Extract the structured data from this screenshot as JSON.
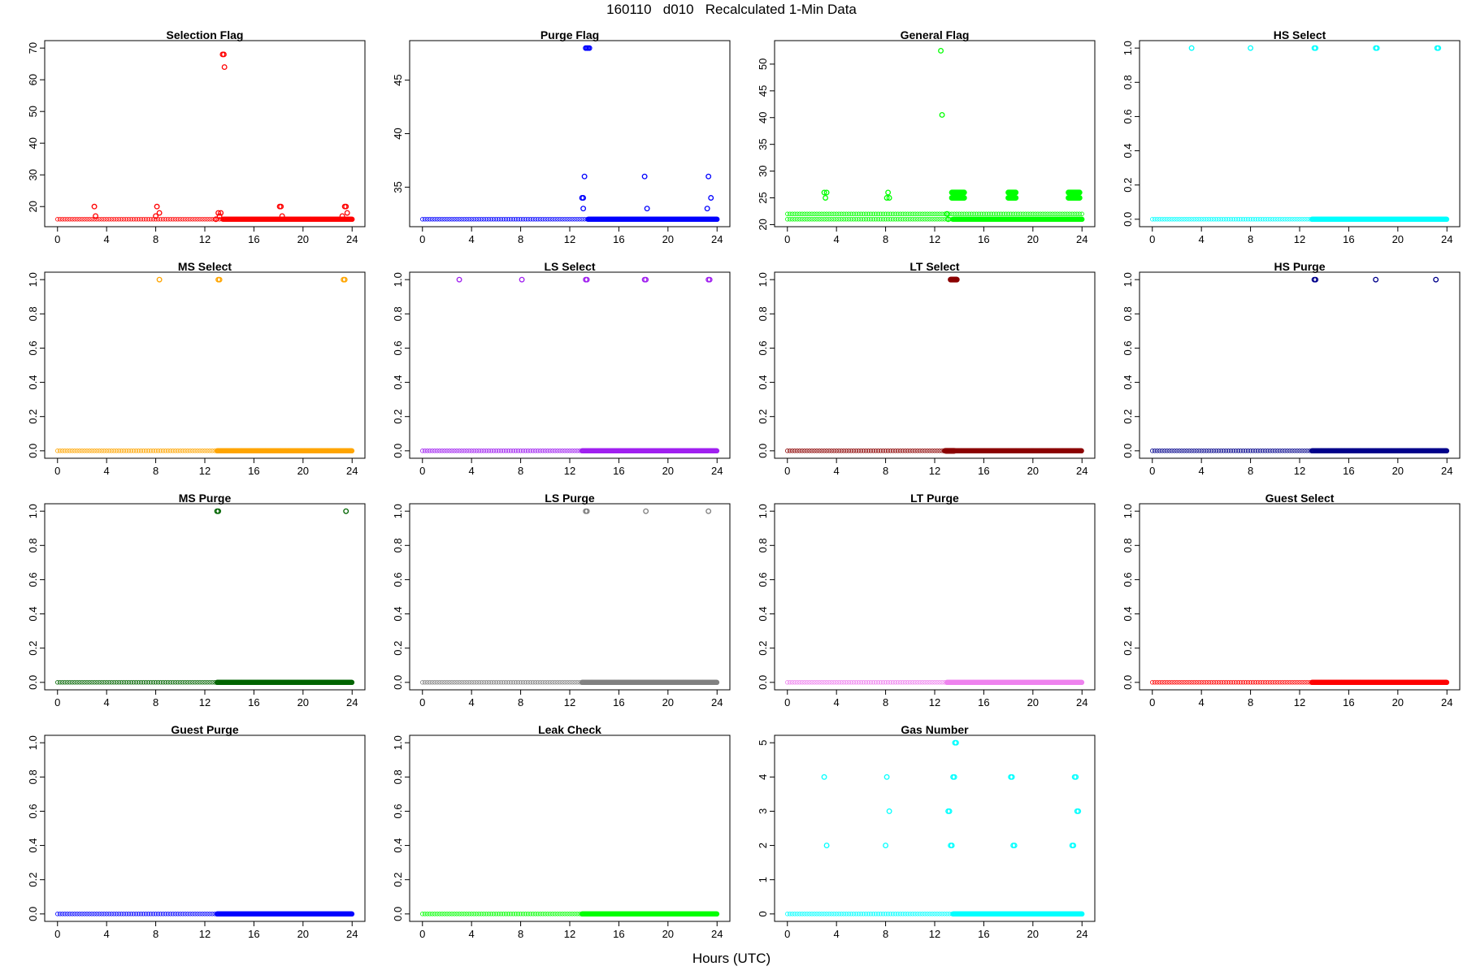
{
  "title": "160110   d010   Recalculated 1-Min Data",
  "xlabel": "Hours (UTC)",
  "chart_data": [
    {
      "type": "scatter",
      "title": "Selection Flag",
      "color": "#ff0000",
      "xlim": [
        0,
        24
      ],
      "ylim": [
        16,
        70
      ],
      "xticks": [
        0,
        4,
        8,
        12,
        16,
        20,
        24
      ],
      "yticks": [
        20,
        30,
        40,
        50,
        60,
        70
      ],
      "baseline": {
        "y": 16,
        "x_range": [
          0,
          24
        ],
        "dense_from": 13.5
      },
      "points": [
        [
          3.0,
          20
        ],
        [
          3.1,
          17
        ],
        [
          8.0,
          17
        ],
        [
          8.1,
          20
        ],
        [
          8.3,
          18
        ],
        [
          12.9,
          16
        ],
        [
          13.1,
          18
        ],
        [
          13.2,
          17
        ],
        [
          13.3,
          18
        ],
        [
          13.45,
          68
        ],
        [
          13.55,
          68
        ],
        [
          13.6,
          64
        ],
        [
          18.1,
          20
        ],
        [
          18.2,
          20
        ],
        [
          18.3,
          17
        ],
        [
          23.2,
          17
        ],
        [
          23.4,
          20
        ],
        [
          23.5,
          20
        ],
        [
          23.6,
          18
        ]
      ]
    },
    {
      "type": "scatter",
      "title": "Purge Flag",
      "color": "#0000ff",
      "xlim": [
        0,
        24
      ],
      "ylim": [
        32,
        48
      ],
      "xticks": [
        0,
        4,
        8,
        12,
        16,
        20,
        24
      ],
      "yticks": [
        35,
        40,
        45
      ],
      "baseline": {
        "y": 32,
        "x_range": [
          0,
          24
        ],
        "dense_from": 13.5
      },
      "points": [
        [
          13.0,
          34
        ],
        [
          13.1,
          34
        ],
        [
          13.2,
          36
        ],
        [
          13.3,
          48
        ],
        [
          13.4,
          48
        ],
        [
          13.5,
          48
        ],
        [
          13.6,
          48
        ],
        [
          13.1,
          33
        ],
        [
          18.1,
          36
        ],
        [
          18.3,
          33
        ],
        [
          23.2,
          33
        ],
        [
          23.3,
          36
        ],
        [
          23.5,
          34
        ]
      ]
    },
    {
      "type": "scatter",
      "title": "General Flag",
      "color": "#00ff00",
      "xlim": [
        0,
        24
      ],
      "ylim": [
        21,
        53
      ],
      "xticks": [
        0,
        4,
        8,
        12,
        16,
        20,
        24
      ],
      "yticks": [
        20,
        25,
        30,
        35,
        40,
        45,
        50
      ],
      "baseline": {
        "y": 21,
        "x_range": [
          0,
          24
        ],
        "dense_from": 13.5
      },
      "extra_lines": [
        {
          "y": 22,
          "x_range": [
            0,
            24
          ]
        }
      ],
      "bands": [
        {
          "y": 25,
          "x_range": [
            13.4,
            14.4
          ]
        },
        {
          "y": 26,
          "x_range": [
            13.4,
            14.4
          ]
        },
        {
          "y": 25,
          "x_range": [
            18.0,
            18.6
          ]
        },
        {
          "y": 26,
          "x_range": [
            18.0,
            18.6
          ]
        },
        {
          "y": 25,
          "x_range": [
            22.9,
            23.8
          ]
        },
        {
          "y": 26,
          "x_range": [
            22.9,
            23.8
          ]
        }
      ],
      "points": [
        [
          3.0,
          26
        ],
        [
          3.1,
          25
        ],
        [
          3.2,
          26
        ],
        [
          8.1,
          25
        ],
        [
          8.2,
          26
        ],
        [
          8.3,
          25
        ],
        [
          12.5,
          52.5
        ],
        [
          12.6,
          40.5
        ],
        [
          13.0,
          22
        ],
        [
          13.1,
          21
        ]
      ]
    },
    {
      "type": "scatter",
      "title": "HS Select",
      "color": "#00ffff",
      "xlim": [
        0,
        24
      ],
      "ylim": [
        0,
        1
      ],
      "xticks": [
        0,
        4,
        8,
        12,
        16,
        20,
        24
      ],
      "yticks": [
        0.0,
        0.2,
        0.4,
        0.6,
        0.8,
        1.0
      ],
      "baseline": {
        "y": 0,
        "x_range": [
          0,
          24
        ],
        "dense_from": 13.0
      },
      "points": [
        [
          3.2,
          1
        ],
        [
          8.0,
          1
        ],
        [
          13.2,
          1
        ],
        [
          13.3,
          1
        ],
        [
          18.2,
          1
        ],
        [
          18.3,
          1
        ],
        [
          23.2,
          1
        ],
        [
          23.3,
          1
        ]
      ]
    },
    {
      "type": "scatter",
      "title": "MS Select",
      "color": "#ffa500",
      "xlim": [
        0,
        24
      ],
      "ylim": [
        0,
        1
      ],
      "xticks": [
        0,
        4,
        8,
        12,
        16,
        20,
        24
      ],
      "yticks": [
        0.0,
        0.2,
        0.4,
        0.6,
        0.8,
        1.0
      ],
      "baseline": {
        "y": 0,
        "x_range": [
          0,
          24
        ],
        "dense_from": 13.0
      },
      "points": [
        [
          8.3,
          1
        ],
        [
          13.1,
          1
        ],
        [
          13.2,
          1
        ],
        [
          23.3,
          1
        ],
        [
          23.4,
          1
        ]
      ]
    },
    {
      "type": "scatter",
      "title": "LS Select",
      "color": "#a020f0",
      "xlim": [
        0,
        24
      ],
      "ylim": [
        0,
        1
      ],
      "xticks": [
        0,
        4,
        8,
        12,
        16,
        20,
        24
      ],
      "yticks": [
        0.0,
        0.2,
        0.4,
        0.6,
        0.8,
        1.0
      ],
      "baseline": {
        "y": 0,
        "x_range": [
          0,
          24
        ],
        "dense_from": 13.0
      },
      "points": [
        [
          3.0,
          1
        ],
        [
          8.1,
          1
        ],
        [
          13.3,
          1
        ],
        [
          13.4,
          1
        ],
        [
          18.1,
          1
        ],
        [
          18.2,
          1
        ],
        [
          23.3,
          1
        ],
        [
          23.4,
          1
        ]
      ]
    },
    {
      "type": "scatter",
      "title": "LT Select",
      "color": "#8b0000",
      "xlim": [
        0,
        24
      ],
      "ylim": [
        0,
        1
      ],
      "xticks": [
        0,
        4,
        8,
        12,
        16,
        20,
        24
      ],
      "yticks": [
        0.0,
        0.2,
        0.4,
        0.6,
        0.8,
        1.0
      ],
      "baseline": {
        "y": 0,
        "x_range": [
          0,
          24
        ],
        "dense_from": 12.8
      },
      "bands": [
        {
          "y": 1,
          "x_range": [
            13.3,
            13.8
          ]
        },
        {
          "y": 0,
          "x_range": [
            12.9,
            13.6
          ]
        }
      ],
      "points": []
    },
    {
      "type": "scatter",
      "title": "HS Purge",
      "color": "#00008b",
      "xlim": [
        0,
        24
      ],
      "ylim": [
        0,
        1
      ],
      "xticks": [
        0,
        4,
        8,
        12,
        16,
        20,
        24
      ],
      "yticks": [
        0.0,
        0.2,
        0.4,
        0.6,
        0.8,
        1.0
      ],
      "baseline": {
        "y": 0,
        "x_range": [
          0,
          24
        ],
        "dense_from": 13.0
      },
      "points": [
        [
          13.2,
          1
        ],
        [
          13.3,
          1
        ],
        [
          18.2,
          1
        ],
        [
          23.1,
          1
        ]
      ]
    },
    {
      "type": "scatter",
      "title": "MS Purge",
      "color": "#006400",
      "xlim": [
        0,
        24
      ],
      "ylim": [
        0,
        1
      ],
      "xticks": [
        0,
        4,
        8,
        12,
        16,
        20,
        24
      ],
      "yticks": [
        0.0,
        0.2,
        0.4,
        0.6,
        0.8,
        1.0
      ],
      "baseline": {
        "y": 0,
        "x_range": [
          0,
          24
        ],
        "dense_from": 13.0
      },
      "points": [
        [
          13.0,
          1
        ],
        [
          13.1,
          1
        ],
        [
          23.5,
          1
        ]
      ]
    },
    {
      "type": "scatter",
      "title": "LS Purge",
      "color": "#808080",
      "xlim": [
        0,
        24
      ],
      "ylim": [
        0,
        1
      ],
      "xticks": [
        0,
        4,
        8,
        12,
        16,
        20,
        24
      ],
      "yticks": [
        0.0,
        0.2,
        0.4,
        0.6,
        0.8,
        1.0
      ],
      "baseline": {
        "y": 0,
        "x_range": [
          0,
          24
        ],
        "dense_from": 13.0
      },
      "points": [
        [
          13.3,
          1
        ],
        [
          13.4,
          1
        ],
        [
          18.2,
          1
        ],
        [
          23.3,
          1
        ]
      ]
    },
    {
      "type": "scatter",
      "title": "LT Purge",
      "color": "#ee82ee",
      "xlim": [
        0,
        24
      ],
      "ylim": [
        0,
        1
      ],
      "xticks": [
        0,
        4,
        8,
        12,
        16,
        20,
        24
      ],
      "yticks": [
        0.0,
        0.2,
        0.4,
        0.6,
        0.8,
        1.0
      ],
      "baseline": {
        "y": 0,
        "x_range": [
          0,
          24
        ],
        "dense_from": 13.0
      },
      "points": []
    },
    {
      "type": "scatter",
      "title": "Guest Select",
      "color": "#ff0000",
      "xlim": [
        0,
        24
      ],
      "ylim": [
        0,
        1
      ],
      "xticks": [
        0,
        4,
        8,
        12,
        16,
        20,
        24
      ],
      "yticks": [
        0.0,
        0.2,
        0.4,
        0.6,
        0.8,
        1.0
      ],
      "baseline": {
        "y": 0,
        "x_range": [
          0,
          24
        ],
        "dense_from": 13.0
      },
      "points": []
    },
    {
      "type": "scatter",
      "title": "Guest Purge",
      "color": "#0000ff",
      "xlim": [
        0,
        24
      ],
      "ylim": [
        0,
        1
      ],
      "xticks": [
        0,
        4,
        8,
        12,
        16,
        20,
        24
      ],
      "yticks": [
        0.0,
        0.2,
        0.4,
        0.6,
        0.8,
        1.0
      ],
      "baseline": {
        "y": 0,
        "x_range": [
          0,
          24
        ],
        "dense_from": 13.0
      },
      "points": []
    },
    {
      "type": "scatter",
      "title": "Leak Check",
      "color": "#00ff00",
      "xlim": [
        0,
        24
      ],
      "ylim": [
        0,
        1
      ],
      "xticks": [
        0,
        4,
        8,
        12,
        16,
        20,
        24
      ],
      "yticks": [
        0.0,
        0.2,
        0.4,
        0.6,
        0.8,
        1.0
      ],
      "baseline": {
        "y": 0,
        "x_range": [
          0,
          24
        ],
        "dense_from": 13.0
      },
      "points": []
    },
    {
      "type": "scatter",
      "title": "Gas Number",
      "color": "#00ffff",
      "xlim": [
        0,
        24
      ],
      "ylim": [
        0,
        5
      ],
      "xticks": [
        0,
        4,
        8,
        12,
        16,
        20,
        24
      ],
      "yticks": [
        0,
        1,
        2,
        3,
        4,
        5
      ],
      "baseline": {
        "y": 0,
        "x_range": [
          0,
          24
        ],
        "dense_from": 13.5
      },
      "points": [
        [
          3.0,
          4
        ],
        [
          3.2,
          2
        ],
        [
          8.1,
          4
        ],
        [
          8.0,
          2
        ],
        [
          8.3,
          3
        ],
        [
          13.1,
          3
        ],
        [
          13.2,
          3
        ],
        [
          13.3,
          2
        ],
        [
          13.4,
          2
        ],
        [
          13.5,
          4
        ],
        [
          13.6,
          4
        ],
        [
          13.65,
          5
        ],
        [
          13.75,
          5
        ],
        [
          18.2,
          4
        ],
        [
          18.3,
          4
        ],
        [
          18.4,
          2
        ],
        [
          18.5,
          2
        ],
        [
          23.2,
          2
        ],
        [
          23.3,
          2
        ],
        [
          23.4,
          4
        ],
        [
          23.5,
          4
        ],
        [
          23.6,
          3
        ],
        [
          23.7,
          3
        ]
      ]
    }
  ]
}
